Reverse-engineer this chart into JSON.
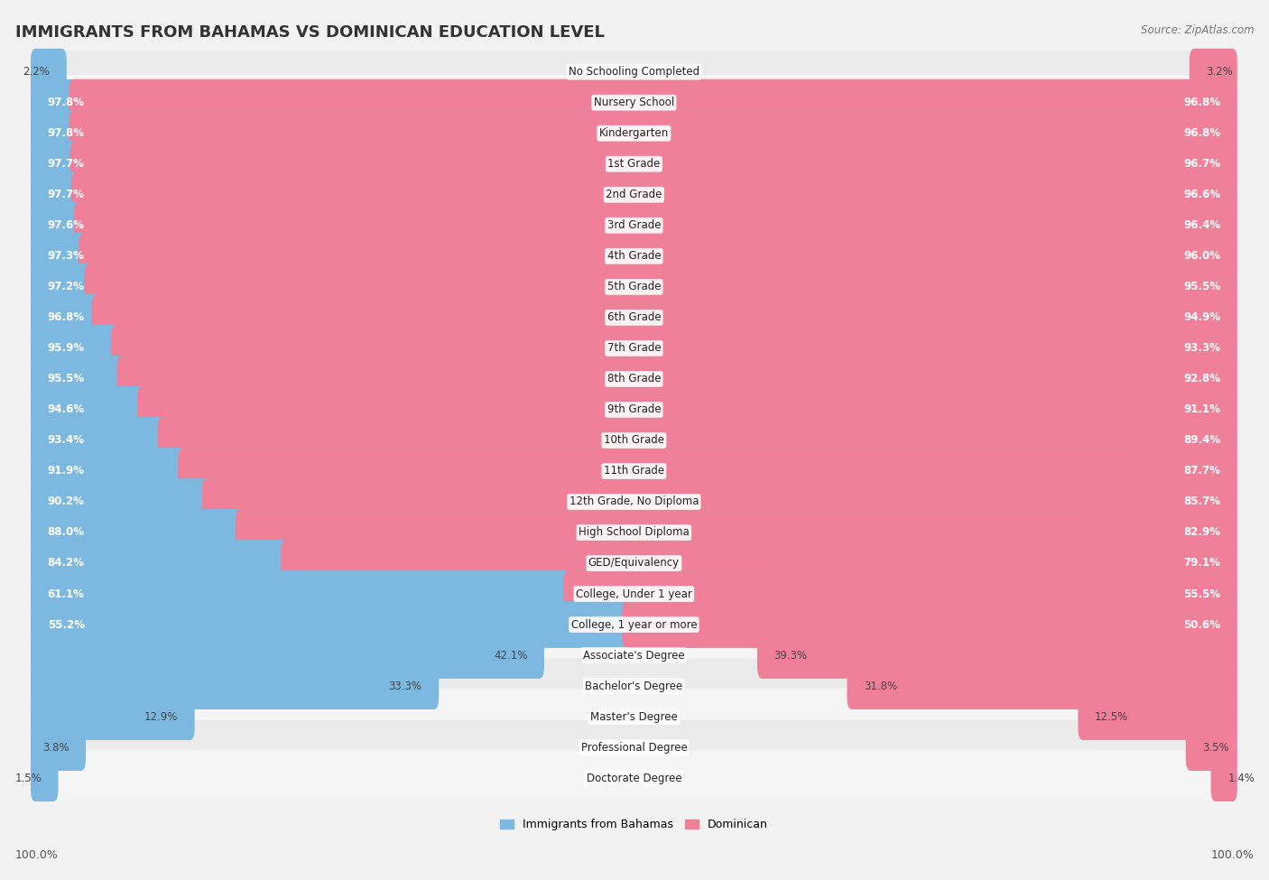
{
  "title": "IMMIGRANTS FROM BAHAMAS VS DOMINICAN EDUCATION LEVEL",
  "source": "Source: ZipAtlas.com",
  "categories": [
    "No Schooling Completed",
    "Nursery School",
    "Kindergarten",
    "1st Grade",
    "2nd Grade",
    "3rd Grade",
    "4th Grade",
    "5th Grade",
    "6th Grade",
    "7th Grade",
    "8th Grade",
    "9th Grade",
    "10th Grade",
    "11th Grade",
    "12th Grade, No Diploma",
    "High School Diploma",
    "GED/Equivalency",
    "College, Under 1 year",
    "College, 1 year or more",
    "Associate's Degree",
    "Bachelor's Degree",
    "Master's Degree",
    "Professional Degree",
    "Doctorate Degree"
  ],
  "bahamas": [
    2.2,
    97.8,
    97.8,
    97.7,
    97.7,
    97.6,
    97.3,
    97.2,
    96.8,
    95.9,
    95.5,
    94.6,
    93.4,
    91.9,
    90.2,
    88.0,
    84.2,
    61.1,
    55.2,
    42.1,
    33.3,
    12.9,
    3.8,
    1.5
  ],
  "dominican": [
    3.2,
    96.8,
    96.8,
    96.7,
    96.6,
    96.4,
    96.0,
    95.5,
    94.9,
    93.3,
    92.8,
    91.1,
    89.4,
    87.7,
    85.7,
    82.9,
    79.1,
    55.5,
    50.6,
    39.3,
    31.8,
    12.5,
    3.5,
    1.4
  ],
  "bahamas_color": "#7db8e0",
  "dominican_color": "#f08099",
  "background_color": "#f2f2f2",
  "row_bg_color": "#e8e8e8",
  "row_light_color": "#f8f8f8",
  "title_fontsize": 13,
  "label_fontsize": 8.5,
  "value_fontsize": 8.5
}
